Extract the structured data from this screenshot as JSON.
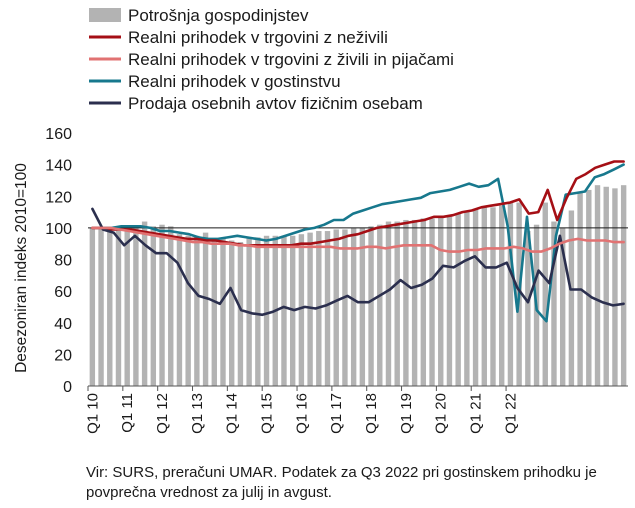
{
  "chart_data": {
    "type": "bar+line",
    "ylabel": "Desezoniran indeks 2010=100",
    "ylim": [
      0,
      160
    ],
    "yticks": [
      0,
      20,
      40,
      60,
      80,
      100,
      120,
      140,
      160
    ],
    "reference_line": 100,
    "grid": false,
    "legend_position": "top",
    "start_quarter": "Q1 2010",
    "x_tick_labels": [
      "Q1 10",
      "Q1 11",
      "Q1 12",
      "Q1 13",
      "Q1 14",
      "Q1 15",
      "Q1 16",
      "Q1 17",
      "Q1 18",
      "Q1 19",
      "Q1 20",
      "Q1 21",
      "Q1 22"
    ],
    "series": [
      {
        "name": "Potrošnja gospodinjstev",
        "kind": "bar",
        "color": "#b3b3b3",
        "values": [
          100,
          99,
          100,
          101,
          101,
          100,
          104,
          101,
          102,
          101,
          96,
          95,
          95,
          97,
          93,
          93,
          92,
          91,
          94,
          94,
          95,
          95,
          95,
          95,
          96,
          97,
          98,
          98,
          99,
          99,
          100,
          100,
          101,
          102,
          104,
          104,
          105,
          105,
          106,
          106,
          107,
          108,
          109,
          110,
          112,
          113,
          113,
          114,
          116,
          116,
          98,
          102,
          116,
          104,
          100,
          111,
          123,
          124,
          127,
          126,
          125,
          127
        ]
      },
      {
        "name": "Realni prihodek v trgovini z neživili",
        "kind": "line",
        "color": "#a50f15",
        "values": [
          100,
          100,
          99,
          99,
          99,
          98,
          97,
          96,
          95,
          94,
          93,
          93,
          92,
          92,
          91,
          90,
          89,
          89,
          89,
          89,
          89,
          89,
          90,
          90,
          91,
          92,
          93,
          95,
          96,
          98,
          100,
          101,
          102,
          103,
          104,
          105,
          107,
          107,
          108,
          110,
          111,
          113,
          114,
          115,
          116,
          118,
          109,
          110,
          124,
          105,
          119,
          131,
          134,
          138,
          140,
          142,
          142
        ]
      },
      {
        "name": "Realni prihodek v trgovini z živili in pijačami",
        "kind": "line",
        "color": "#e17272",
        "values": [
          100,
          100,
          100,
          99,
          98,
          97,
          96,
          95,
          94,
          93,
          92,
          91,
          91,
          90,
          90,
          90,
          89,
          89,
          88,
          88,
          88,
          88,
          88,
          88,
          88,
          88,
          88,
          87,
          87,
          87,
          88,
          88,
          87,
          88,
          89,
          89,
          89,
          89,
          86,
          85,
          85,
          86,
          86,
          87,
          87,
          87,
          88,
          87,
          85,
          85,
          87,
          90,
          92,
          93,
          92,
          92,
          92,
          91,
          91
        ]
      },
      {
        "name": "Realni prihodek v gostinstvu",
        "kind": "line",
        "color": "#17788d",
        "values": [
          100,
          100,
          100,
          101,
          101,
          101,
          100,
          98,
          98,
          97,
          96,
          94,
          93,
          93,
          94,
          95,
          94,
          93,
          92,
          93,
          95,
          97,
          99,
          100,
          102,
          105,
          105,
          109,
          111,
          113,
          115,
          116,
          117,
          118,
          119,
          122,
          123,
          124,
          126,
          128,
          126,
          127,
          131,
          101,
          47,
          107,
          48,
          41,
          95,
          121,
          122,
          123,
          132,
          134,
          137,
          140
        ]
      },
      {
        "name": "Prodaja osebnih avtov fizičnim osebam",
        "kind": "line",
        "color": "#2b2f4e",
        "values": [
          112,
          99,
          97,
          89,
          95,
          89,
          84,
          84,
          78,
          65,
          57,
          55,
          52,
          62,
          48,
          46,
          45,
          47,
          50,
          48,
          50,
          49,
          51,
          54,
          57,
          53,
          53,
          57,
          61,
          67,
          62,
          64,
          68,
          76,
          75,
          79,
          82,
          75,
          75,
          78,
          62,
          53,
          73,
          65,
          95,
          61,
          61,
          56,
          53,
          51,
          52
        ]
      }
    ]
  },
  "legend": {
    "items": [
      {
        "label": "Potrošnja gospodinjstev",
        "kind": "bar",
        "color": "#b3b3b3"
      },
      {
        "label": "Realni prihodek v trgovini z neživili",
        "kind": "line",
        "color": "#a50f15"
      },
      {
        "label": "Realni prihodek v trgovini z živili in pijačami",
        "kind": "line",
        "color": "#e17272"
      },
      {
        "label": "Realni prihodek v gostinstvu",
        "kind": "line",
        "color": "#17788d"
      },
      {
        "label": "Prodaja osebnih avtov fizičnim osebam",
        "kind": "line",
        "color": "#2b2f4e"
      }
    ]
  },
  "source_note": "Vir: SURS, preračuni UMAR. Podatek za Q3 2022 pri gostinskem prihodku je povprečna vrednost za julij in avgust."
}
